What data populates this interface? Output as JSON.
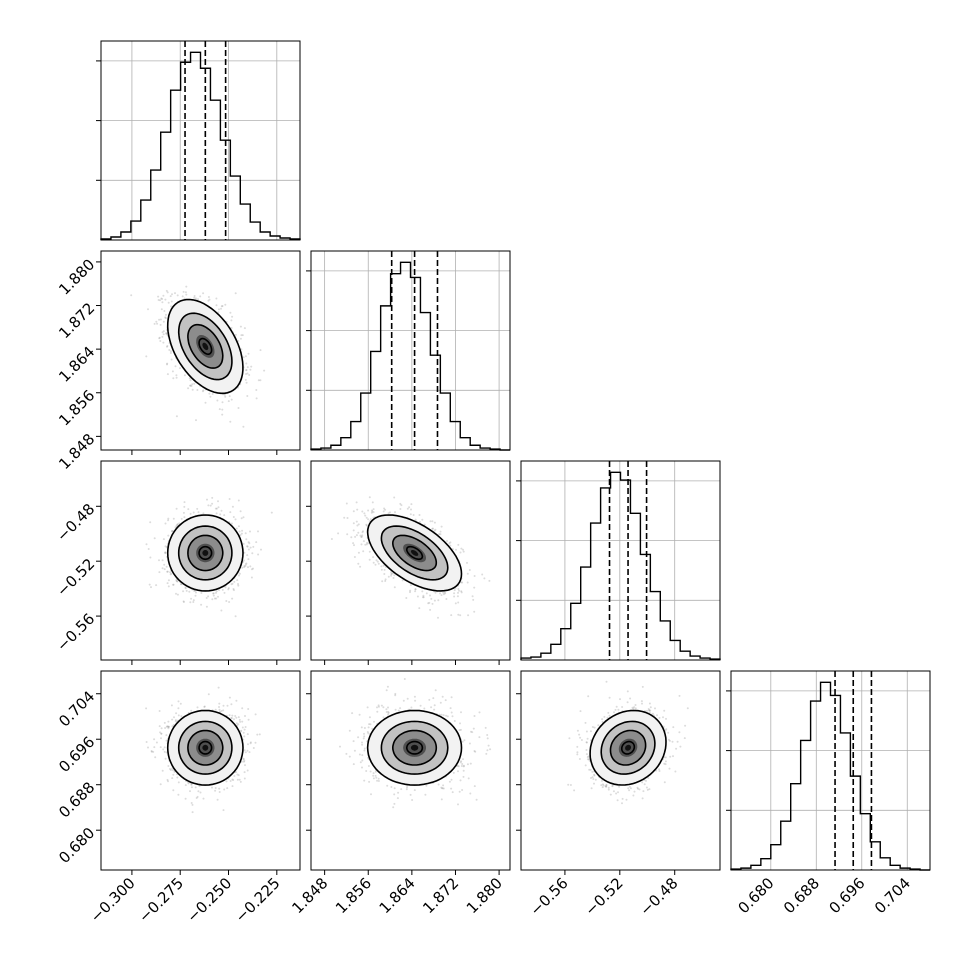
{
  "chart_data": {
    "type": "corner",
    "grid": true,
    "parameters": [
      {
        "mean": -0.262,
        "sd": 0.0095,
        "range": [
          -0.316,
          -0.213
        ],
        "quantiles": [
          -0.2725,
          -0.262,
          -0.2515
        ],
        "ticks": [
          -0.3,
          -0.275,
          -0.25,
          -0.225
        ],
        "tick_labels": [
          "−0.300",
          "−0.275",
          "−0.250",
          "−0.225"
        ]
      },
      {
        "mean": 1.8645,
        "sd": 0.0042,
        "range": [
          1.8455,
          1.882
        ],
        "quantiles": [
          1.8603,
          1.8645,
          1.8687
        ],
        "ticks": [
          1.848,
          1.856,
          1.864,
          1.872,
          1.88
        ],
        "tick_labels": [
          "1.848",
          "1.856",
          "1.864",
          "1.872",
          "1.880"
        ]
      },
      {
        "mean": -0.514,
        "sd": 0.0135,
        "range": [
          -0.592,
          -0.447
        ],
        "quantiles": [
          -0.5275,
          -0.514,
          -0.5005
        ],
        "ticks": [
          -0.56,
          -0.52,
          -0.48
        ],
        "tick_labels": [
          "−0.56",
          "−0.52",
          "−0.48"
        ]
      },
      {
        "mean": 0.6945,
        "sd": 0.0032,
        "range": [
          0.673,
          0.708
        ],
        "quantiles": [
          0.6913,
          0.6945,
          0.6977
        ],
        "ticks": [
          0.68,
          0.688,
          0.696,
          0.704
        ],
        "tick_labels": [
          "0.680",
          "0.688",
          "0.696",
          "0.704"
        ]
      }
    ],
    "correlations": [
      {
        "pair": [
          0,
          1
        ],
        "rho": -0.45
      },
      {
        "pair": [
          0,
          2
        ],
        "rho": 0.0
      },
      {
        "pair": [
          1,
          2
        ],
        "rho": -0.55
      },
      {
        "pair": [
          0,
          3
        ],
        "rho": 0.0
      },
      {
        "pair": [
          1,
          3
        ],
        "rho": 0.0
      },
      {
        "pair": [
          2,
          3
        ],
        "rho": 0.15
      }
    ],
    "histograms": [
      [
        1,
        3,
        8,
        19,
        40,
        70,
        108,
        150,
        178,
        188,
        172,
        140,
        100,
        64,
        36,
        18,
        8,
        4,
        2,
        1
      ],
      [
        1,
        2,
        5,
        13,
        30,
        60,
        104,
        152,
        186,
        198,
        182,
        145,
        100,
        60,
        30,
        13,
        5,
        2,
        1,
        0
      ],
      [
        2,
        3,
        7,
        16,
        32,
        58,
        95,
        140,
        176,
        192,
        184,
        150,
        108,
        70,
        40,
        20,
        9,
        4,
        2,
        1
      ],
      [
        1,
        2,
        5,
        12,
        27,
        52,
        92,
        138,
        180,
        200,
        186,
        146,
        100,
        60,
        30,
        13,
        5,
        2,
        1,
        0
      ]
    ],
    "contour_levels_sigma": [
      0.5,
      1.0,
      1.5,
      2.0
    ]
  }
}
